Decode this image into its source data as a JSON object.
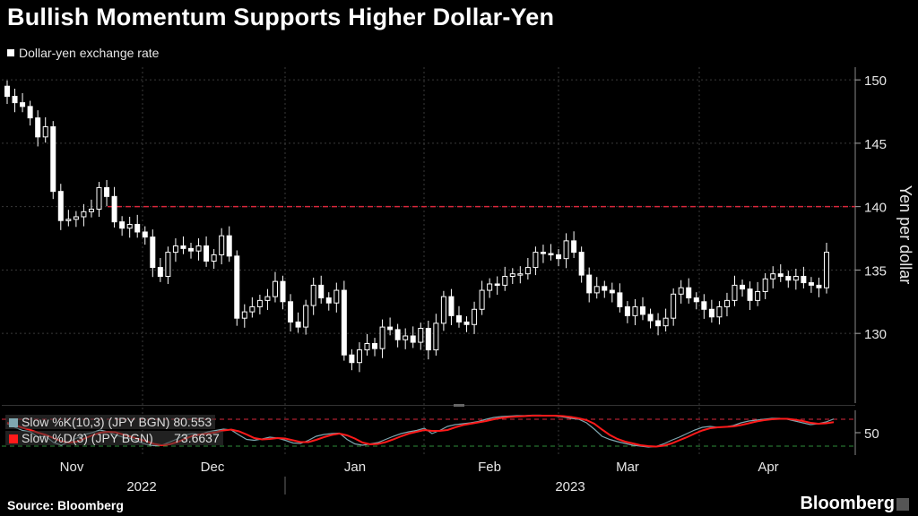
{
  "header": {
    "title": "Bullish Momentum Supports Higher Dollar-Yen"
  },
  "legend": {
    "series_label": "Dollar-yen exchange rate"
  },
  "footer": {
    "source": "Source: Bloomberg",
    "brand": "Bloomberg"
  },
  "colors": {
    "background": "#000000",
    "candle": "#ffffff",
    "resistance": "#d9283c",
    "k_line": "#7fa7b0",
    "d_line": "#ff1a1a",
    "green_guide": "#2e8b3a"
  },
  "chart_data": [
    {
      "type": "candlestick",
      "title": "Bullish Momentum Supports Higher Dollar-Yen",
      "series_name": "Dollar-yen exchange rate",
      "ylabel": "Yen per dollar",
      "ylim": [
        124.5,
        151
      ],
      "yticks": [
        130,
        135,
        140,
        145,
        150
      ],
      "grid": true,
      "resistance_line": 140,
      "x_months": [
        "Nov",
        "Dec",
        "Jan",
        "Feb",
        "Mar",
        "Apr"
      ],
      "x_years": [
        "2022",
        "2023"
      ],
      "closes": [
        148.7,
        148.2,
        147.9,
        147.0,
        145.5,
        146.3,
        141.2,
        138.9,
        139.0,
        139.2,
        139.6,
        139.8,
        141.5,
        140.8,
        138.8,
        138.3,
        138.6,
        138.0,
        137.6,
        135.2,
        134.5,
        136.4,
        136.9,
        136.7,
        136.5,
        136.9,
        135.7,
        136.2,
        137.7,
        136.1,
        131.2,
        131.7,
        132.1,
        132.6,
        132.9,
        134.1,
        132.5,
        130.9,
        130.5,
        132.2,
        133.8,
        132.8,
        132.4,
        133.4,
        128.3,
        127.7,
        128.7,
        129.2,
        128.8,
        130.5,
        130.3,
        129.5,
        129.8,
        129.3,
        130.4,
        128.7,
        130.8,
        132.9,
        131.4,
        130.9,
        130.7,
        131.9,
        133.4,
        133.9,
        133.8,
        134.5,
        134.7,
        134.7,
        135.2,
        136.4,
        136.3,
        136.2,
        135.9,
        137.3,
        136.4,
        134.6,
        133.2,
        133.7,
        133.4,
        133.2,
        132.1,
        131.4,
        132.1,
        131.5,
        131.0,
        130.6,
        131.2,
        133.1,
        133.6,
        132.8,
        132.5,
        131.9,
        131.3,
        132.1,
        132.6,
        133.8,
        133.5,
        132.6,
        133.3,
        134.3,
        134.7,
        134.5,
        134.2,
        134.5,
        134.0,
        133.8,
        133.6,
        136.4
      ],
      "indicator": {
        "type": "line",
        "ylim": [
          0,
          100
        ],
        "ytick": 50,
        "guides": [
          80,
          20
        ],
        "series": [
          {
            "name": "Slow %K(10,3) (JPY BGN)",
            "last": "80.553",
            "values": [
              70,
              62,
              55,
              52,
              40,
              42,
              28,
              22,
              30,
              38,
              46,
              50,
              56,
              52,
              45,
              40,
              37,
              30,
              24,
              21,
              22,
              29,
              36,
              45,
              48,
              46,
              52,
              55,
              58,
              56,
              45,
              35,
              33,
              36,
              40,
              38,
              33,
              27,
              26,
              33,
              42,
              46,
              48,
              49,
              35,
              25,
              22,
              25,
              28,
              35,
              42,
              48,
              52,
              55,
              60,
              48,
              55,
              64,
              68,
              70,
              72,
              75,
              80,
              84,
              86,
              87,
              88,
              88,
              89,
              89,
              88,
              87,
              85,
              82,
              80,
              72,
              58,
              42,
              35,
              30,
              26,
              22,
              20,
              18,
              19,
              25,
              33,
              40,
              48,
              56,
              62,
              64,
              62,
              63,
              66,
              72,
              76,
              78,
              80,
              82,
              82,
              80,
              76,
              72,
              68,
              70,
              74,
              80.553
            ]
          },
          {
            "name": "Slow %D(3) (JPY BGN)",
            "last": "73.6637",
            "values": [
              72,
              67,
              61,
              56,
              50,
              45,
              38,
              31,
              28,
              30,
              37,
              44,
              50,
              52,
              51,
              46,
              41,
              36,
              31,
              25,
              22,
              24,
              29,
              36,
              43,
              46,
              48,
              51,
              55,
              57,
              53,
              46,
              38,
              35,
              36,
              38,
              37,
              33,
              29,
              29,
              34,
              40,
              45,
              48,
              44,
              37,
              28,
              24,
              25,
              29,
              35,
              42,
              48,
              52,
              56,
              54,
              54,
              56,
              62,
              67,
              70,
              73,
              76,
              80,
              83,
              85,
              86,
              87,
              88,
              88,
              88,
              88,
              87,
              85,
              82,
              78,
              70,
              57,
              45,
              36,
              30,
              26,
              22,
              20,
              19,
              21,
              26,
              33,
              40,
              48,
              55,
              60,
              62,
              63,
              64,
              67,
              71,
              75,
              78,
              80,
              81,
              81,
              79,
              76,
              72,
              70,
              71,
              73.6637
            ]
          }
        ]
      }
    }
  ]
}
